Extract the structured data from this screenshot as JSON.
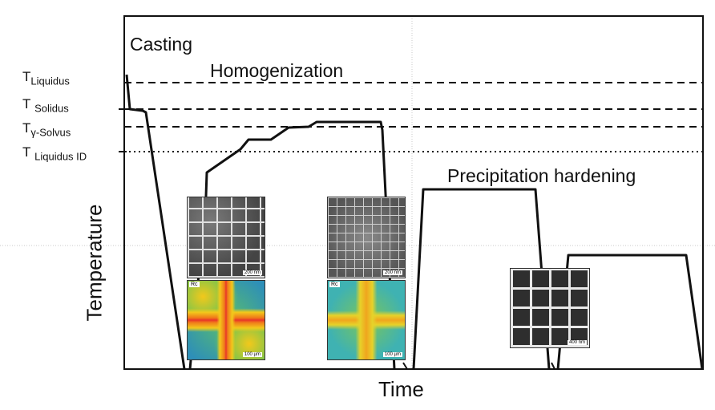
{
  "labels": {
    "casting": "Casting",
    "homogenization": "Homogenization",
    "precipitation_hardening": "Precipitation hardening",
    "x_axis": "Time",
    "y_axis": "Temperature"
  },
  "temperatures": {
    "liquidus": {
      "main": "T",
      "sub": "Liquidus"
    },
    "solidus": {
      "main": "T",
      "sub": "Solidus"
    },
    "gamma_solvus": {
      "main": "T",
      "sub": "γ-Solvus"
    },
    "liquidus_id": {
      "main": "T",
      "sub": "Liquidus ID"
    }
  },
  "micrographs": {
    "sem_as_cast_scale": "200 nm",
    "sem_homogenized_scale": "200 nm",
    "sem_hardened_scale": "400 nm",
    "map_as_cast_label": "Rc",
    "map_as_cast_scale": "100 µm",
    "map_homogenized_label": "Rc",
    "map_homogenized_scale": "100 µm"
  },
  "colors": {
    "curve": "#111111",
    "dashed_lines": "#111111",
    "guide_lines": "#c8c8c8"
  }
}
